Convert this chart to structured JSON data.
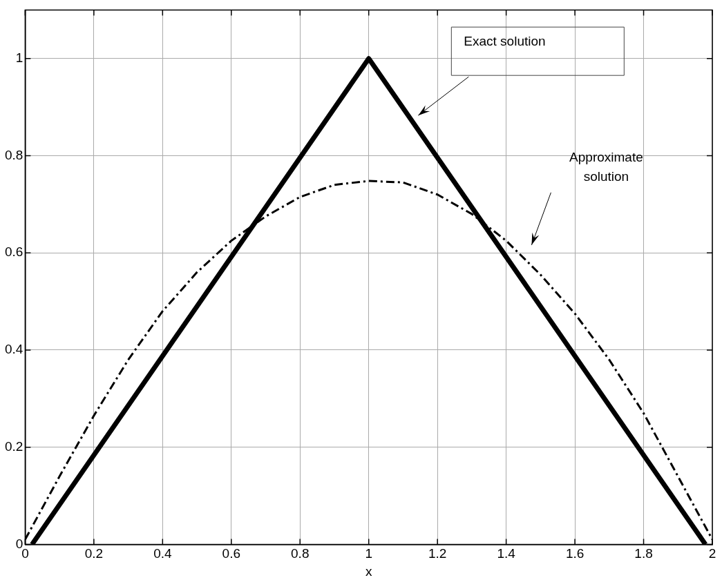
{
  "chart_data": {
    "type": "line",
    "xlabel": "x",
    "xlim": [
      0,
      2
    ],
    "xticks": [
      0,
      0.2,
      0.4,
      0.6,
      0.8,
      1,
      1.2,
      1.4,
      1.6,
      1.8,
      2
    ],
    "ylim": [
      0,
      1.1
    ],
    "yticks": [
      0,
      0.2,
      0.4,
      0.6,
      0.8,
      1
    ],
    "grid": true,
    "legend": false,
    "marker": "none",
    "series": [
      {
        "color": "#000000",
        "line_style": "solid",
        "x": [
          0.02,
          1,
          1.98
        ],
        "values": [
          0,
          1,
          0
        ]
      },
      {
        "color": "#000000",
        "line_style": "dashed",
        "x": [
          0,
          0.1,
          0.2,
          0.3,
          0.4,
          0.5,
          0.6,
          0.7,
          0.8,
          0.9,
          1,
          1.1,
          1.2,
          1.3,
          1.4,
          1.5,
          1.6,
          1.7,
          1.8,
          1.9,
          2
        ],
        "values": [
          0.01,
          0.14,
          0.265,
          0.38,
          0.48,
          0.56,
          0.625,
          0.675,
          0.715,
          0.74,
          0.748,
          0.745,
          0.72,
          0.68,
          0.625,
          0.555,
          0.475,
          0.38,
          0.27,
          0.14,
          0.01
        ]
      }
    ],
    "annotations": [
      "Exact solution",
      "Approximate solution"
    ]
  }
}
